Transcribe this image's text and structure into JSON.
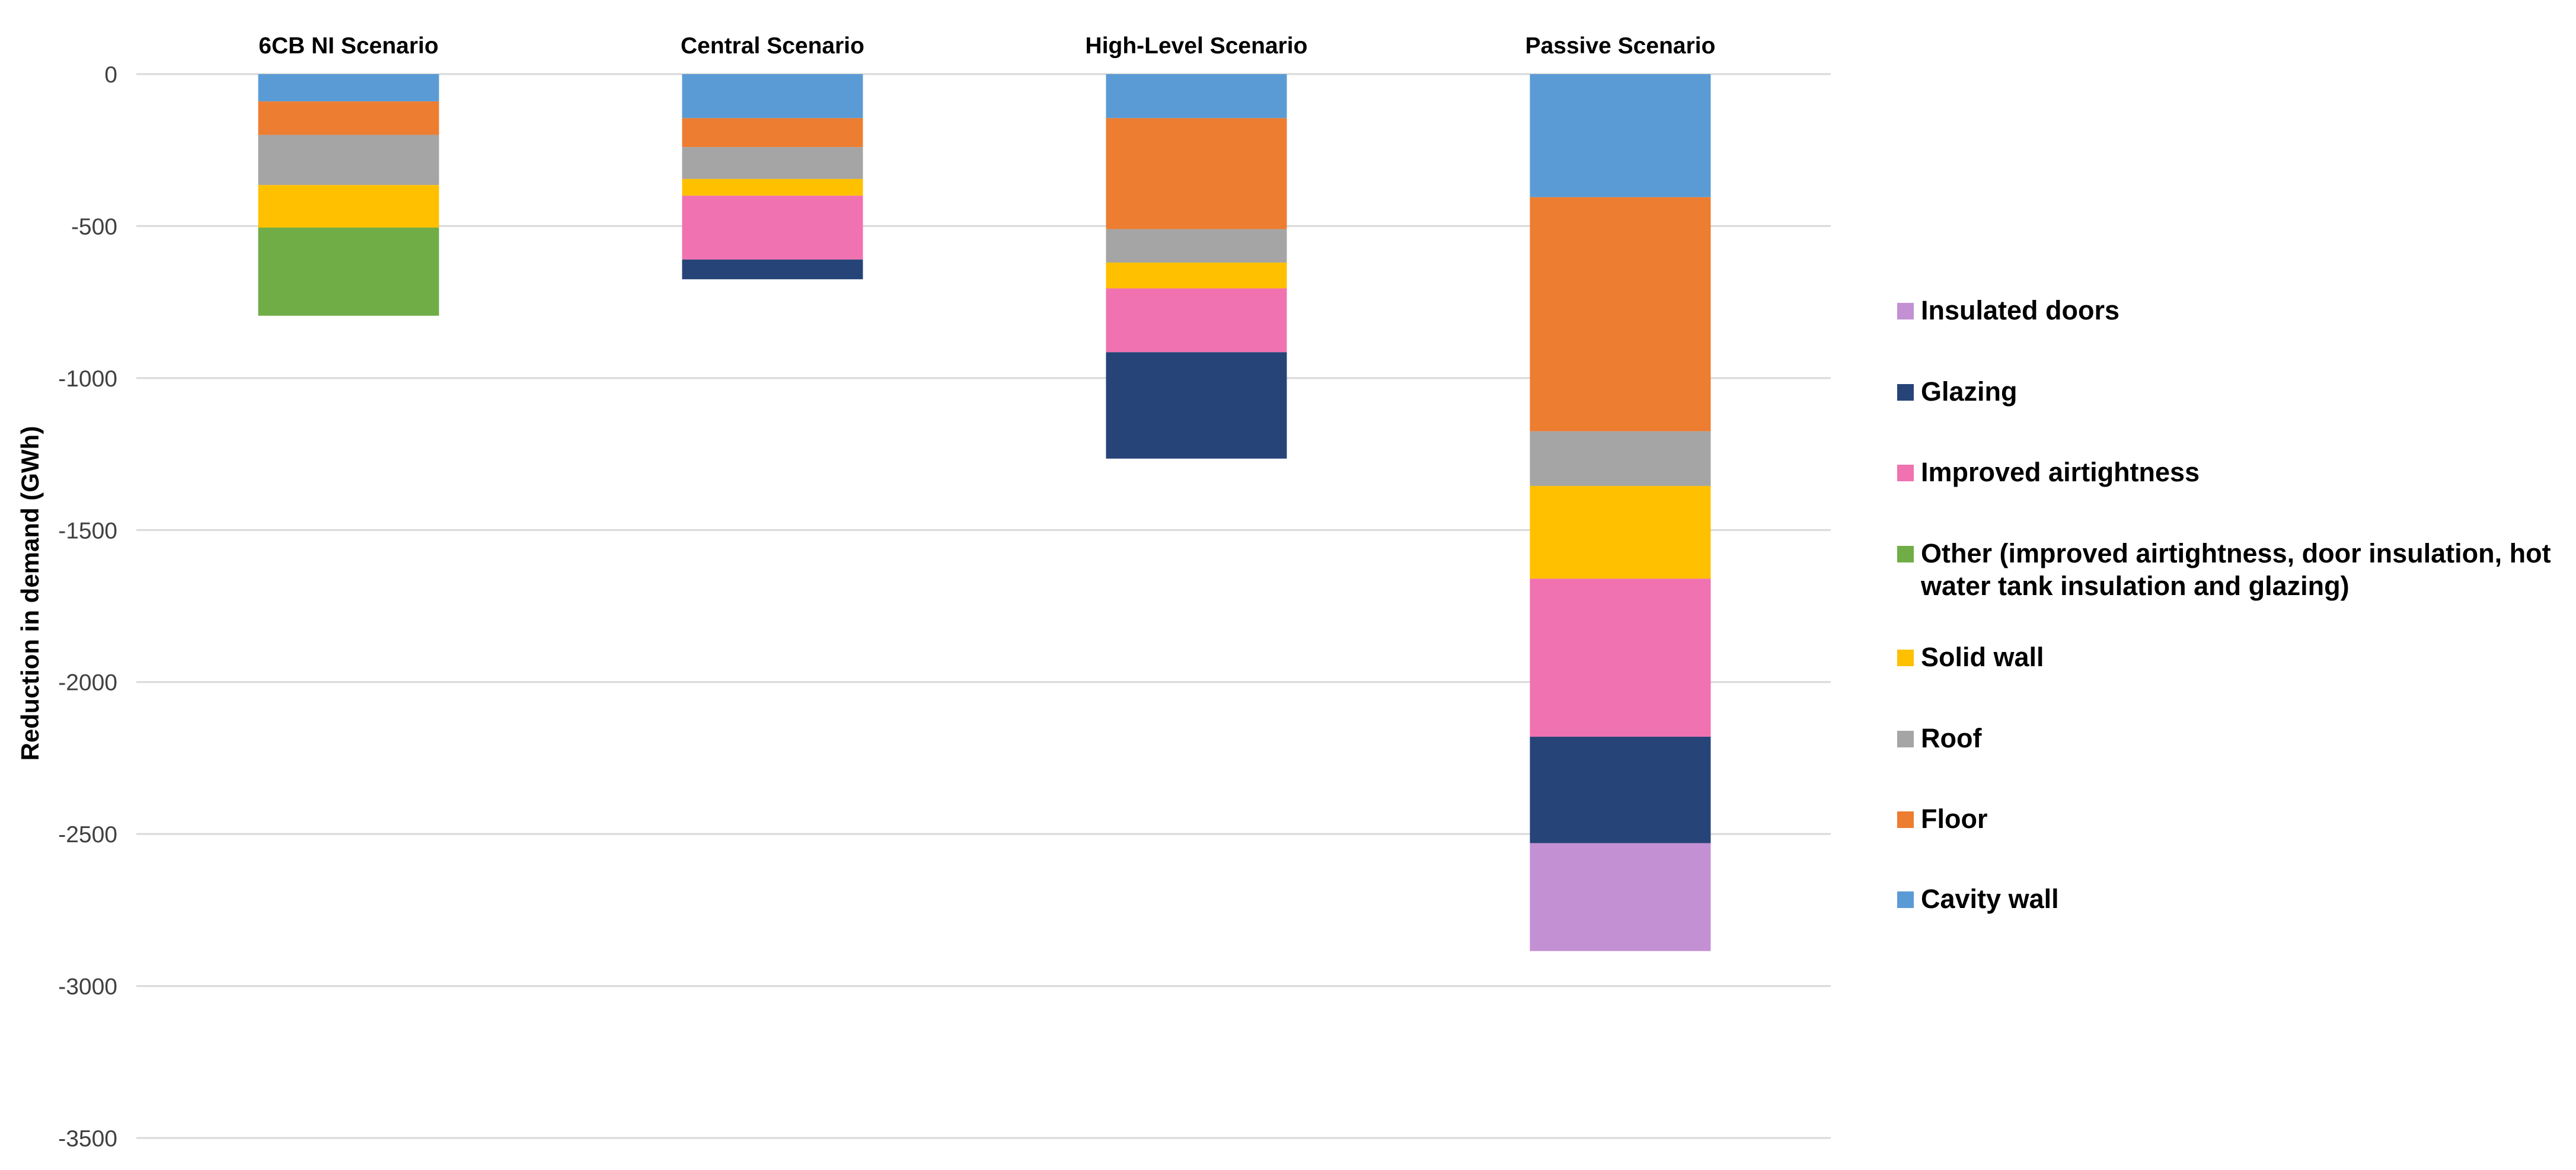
{
  "chart_data": {
    "type": "bar",
    "stacked": true,
    "title": "",
    "xlabel": "",
    "ylabel": "Reduction in demand (GWh)",
    "ylim": [
      -3500,
      0
    ],
    "yticks": [
      0,
      -500,
      -1000,
      -1500,
      -2000,
      -2500,
      -3000,
      -3500
    ],
    "ytick_labels": [
      "0",
      "-500",
      "-1000",
      "-1500",
      "-2000",
      "-2500",
      "-3000",
      "-3500"
    ],
    "grid": true,
    "x_axis_position": "top",
    "legend_position": "right",
    "categories": [
      "6CB NI Scenario",
      "Central Scenario",
      "High-Level Scenario",
      "Passive Scenario"
    ],
    "series": [
      {
        "name": "Cavity wall",
        "color": "#5B9BD5",
        "values": [
          -90,
          -145,
          -145,
          -405
        ]
      },
      {
        "name": "Floor",
        "color": "#ED7D31",
        "values": [
          -110,
          -95,
          -365,
          -770
        ]
      },
      {
        "name": "Roof",
        "color": "#A5A5A5",
        "values": [
          -165,
          -105,
          -110,
          -180
        ]
      },
      {
        "name": "Solid wall",
        "color": "#FFC000",
        "values": [
          -140,
          -55,
          -85,
          -305
        ]
      },
      {
        "name": "Other (improved airtightness, door insulation, hot water tank insulation and glazing)",
        "color": "#70AD47",
        "values": [
          -290,
          0,
          0,
          0
        ]
      },
      {
        "name": "Improved airtightness",
        "color": "#F072B0",
        "values": [
          0,
          -210,
          -210,
          -520
        ]
      },
      {
        "name": "Glazing",
        "color": "#264478",
        "values": [
          0,
          -65,
          -350,
          -350
        ]
      },
      {
        "name": "Insulated doors",
        "color": "#C490D4",
        "values": [
          0,
          0,
          0,
          -355
        ]
      }
    ],
    "legend_order": [
      "Insulated doors",
      "Glazing",
      "Improved airtightness",
      "Other (improved airtightness, door insulation, hot water tank insulation and glazing)",
      "Solid wall",
      "Roof",
      "Floor",
      "Cavity wall"
    ]
  }
}
